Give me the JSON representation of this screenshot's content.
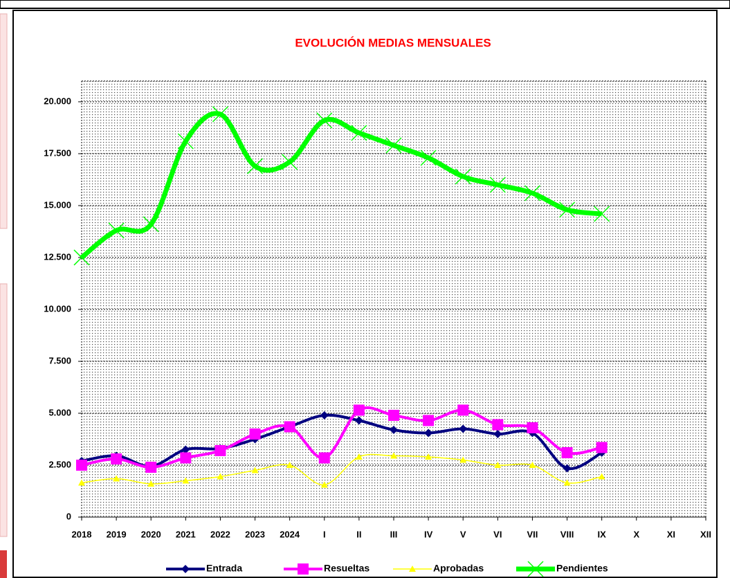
{
  "chart_data": {
    "type": "line",
    "title": "EVOLUCIÓN MEDIAS MENSUALES",
    "categories": [
      "2018",
      "2019",
      "2020",
      "2021",
      "2022",
      "2023",
      "2024",
      "I",
      "II",
      "III",
      "IV",
      "V",
      "VI",
      "VII",
      "VIII",
      "IX",
      "X",
      "XI",
      "XII"
    ],
    "smooth": true,
    "grid": true,
    "legend": "bottom",
    "ylim": [
      0,
      21000
    ],
    "yticks": [
      0,
      {
        "value": 2500,
        "label": "2.500"
      },
      {
        "value": 5000,
        "label": "5.000"
      },
      {
        "value": 7500,
        "label": "7.500"
      },
      {
        "value": 10000,
        "label": "10.000"
      },
      {
        "value": 12500,
        "label": "12.500"
      },
      {
        "value": 15000,
        "label": "15.000"
      },
      {
        "value": 17500,
        "label": "17.500"
      },
      {
        "value": 20000,
        "label": "20.000"
      }
    ],
    "series": [
      {
        "name": "Entrada",
        "color": "#000080",
        "marker": "diamond",
        "values": [
          2700,
          2950,
          2450,
          3250,
          3300,
          3750,
          4350,
          4900,
          4650,
          4200,
          4050,
          4250,
          4000,
          4050,
          2350,
          3100,
          null,
          null,
          null
        ]
      },
      {
        "name": "Resueltas",
        "color": "#ff00ff",
        "marker": "square",
        "values": [
          2500,
          2800,
          2400,
          2850,
          3200,
          4000,
          4350,
          2850,
          5150,
          4900,
          4650,
          5150,
          4450,
          4300,
          3100,
          3350,
          null,
          null,
          null
        ]
      },
      {
        "name": "Aprobadas",
        "color": "#ffff00",
        "marker": "triangle",
        "values": [
          1650,
          1850,
          1600,
          1750,
          1950,
          2250,
          2500,
          1550,
          2900,
          2950,
          2900,
          2750,
          2500,
          2500,
          1650,
          1950,
          null,
          null,
          null
        ]
      },
      {
        "name": "Pendientes",
        "color": "#00ff00",
        "marker": "x",
        "values": [
          12500,
          13800,
          14100,
          18100,
          19400,
          16900,
          17100,
          19100,
          18500,
          17900,
          17300,
          16400,
          16000,
          15600,
          14800,
          14600,
          null,
          null,
          null
        ]
      }
    ]
  }
}
